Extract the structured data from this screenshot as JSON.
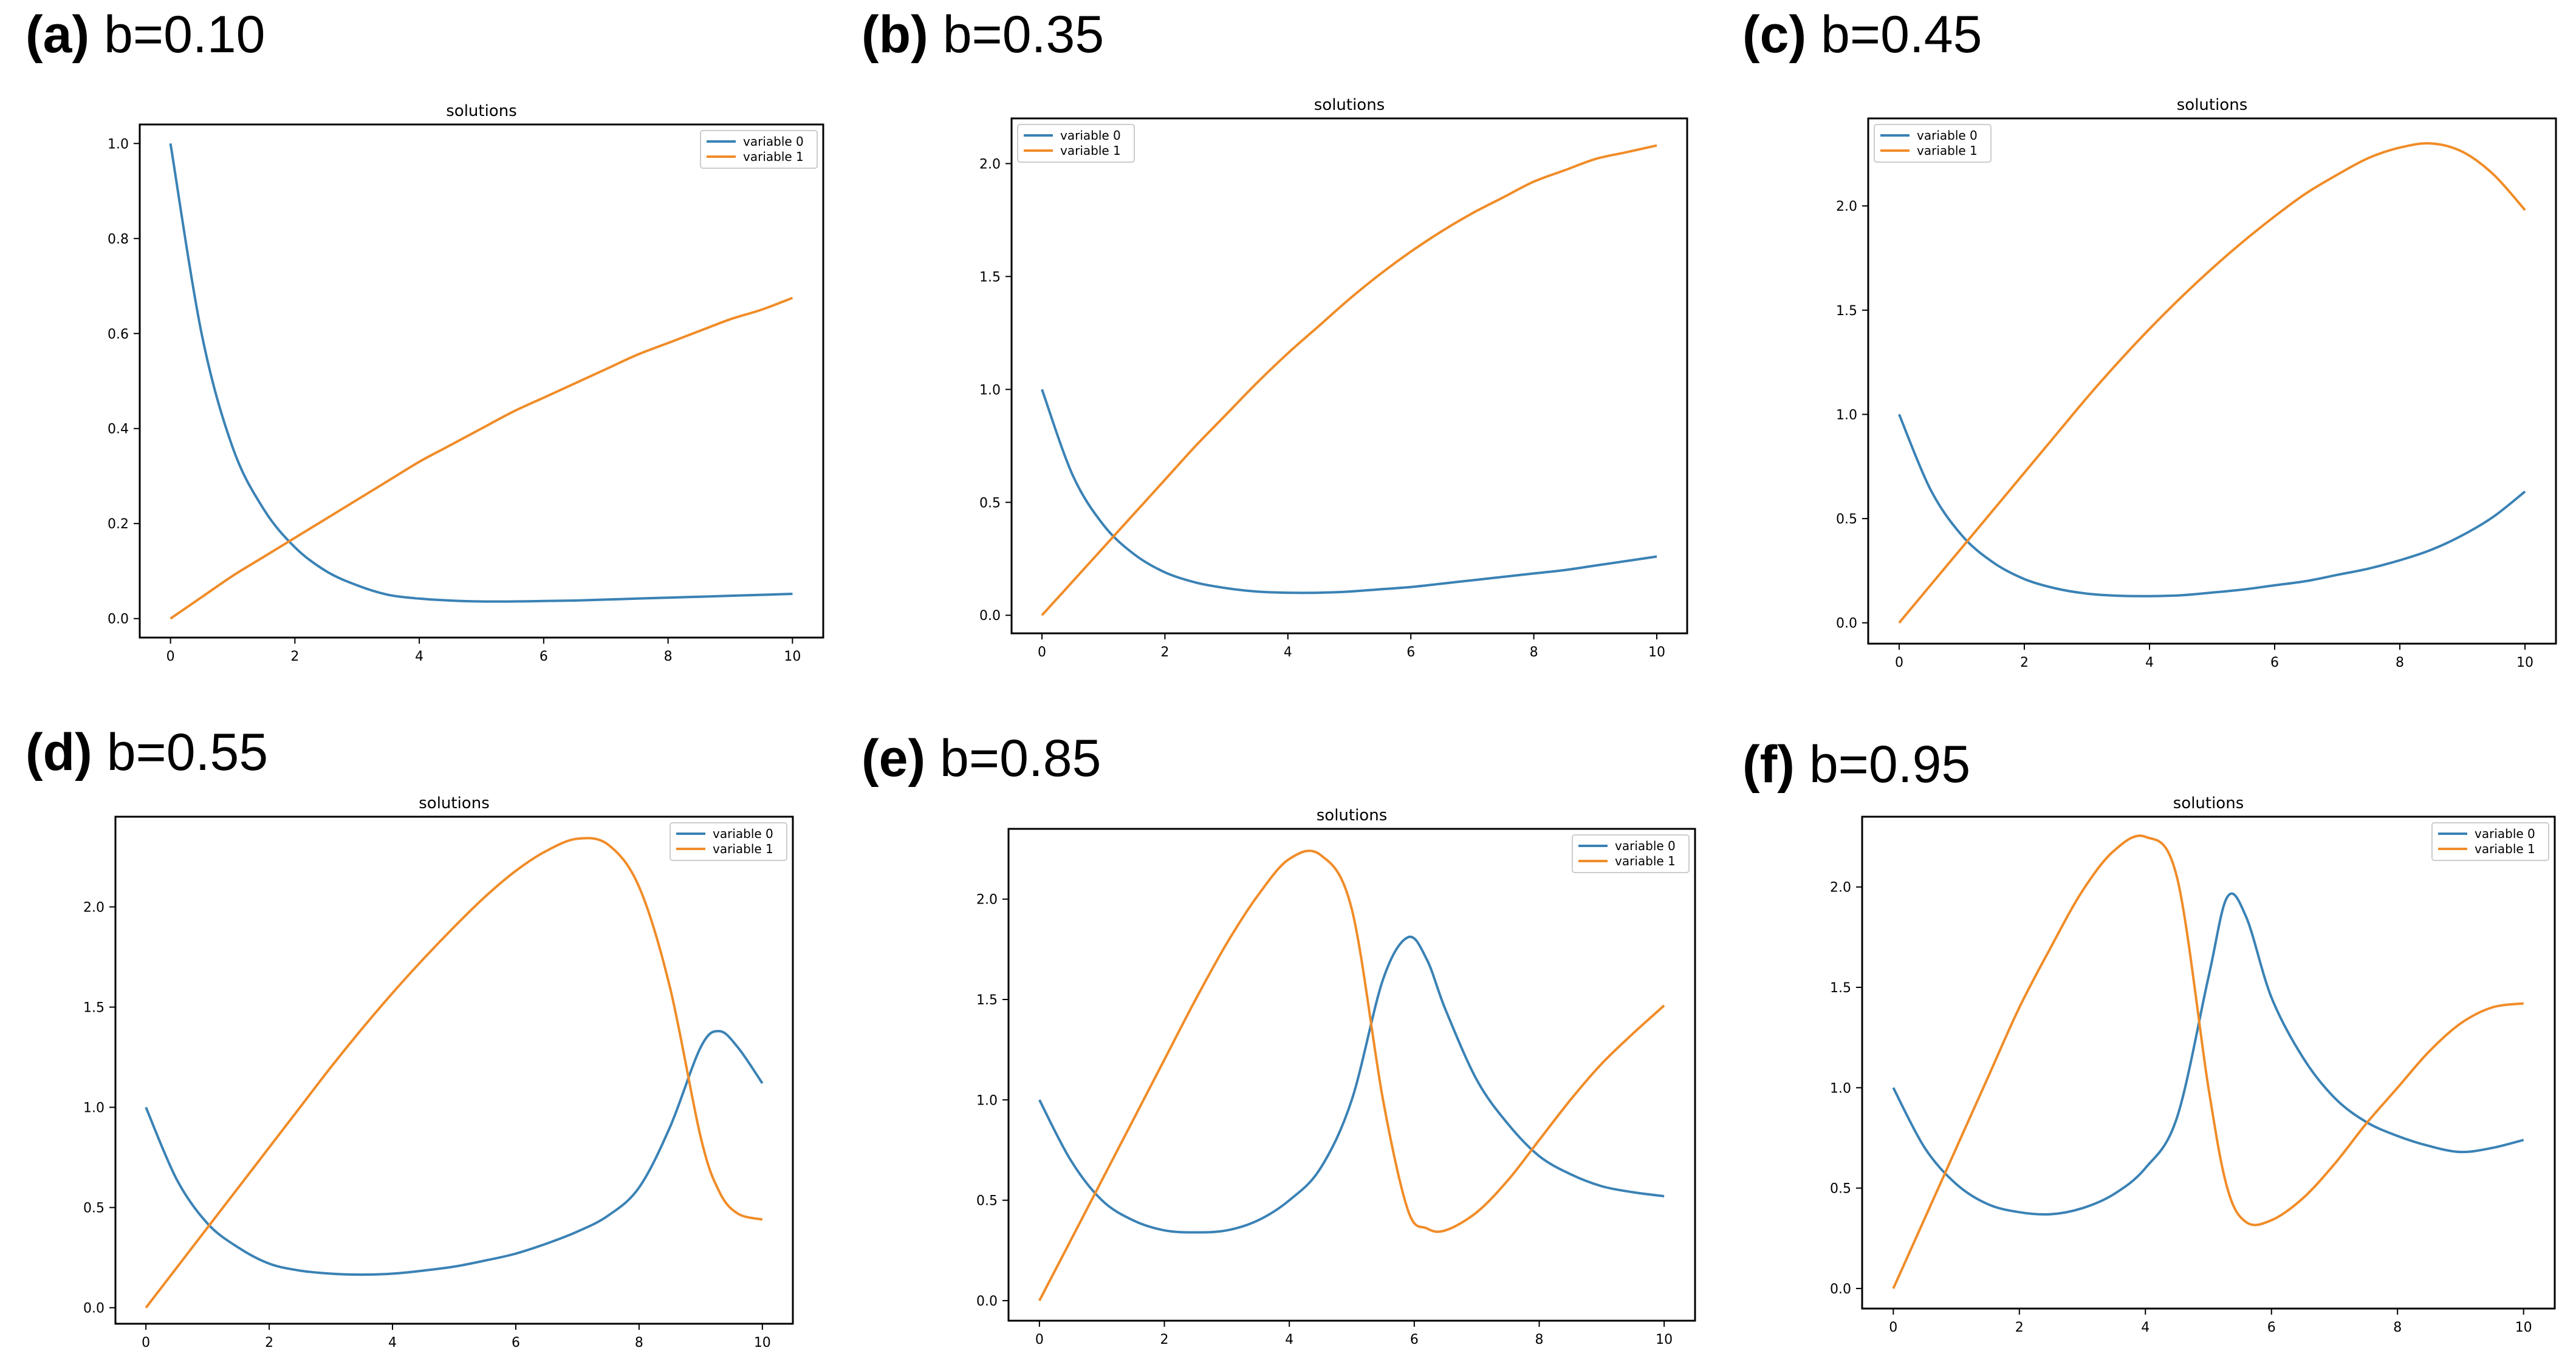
{
  "colors": {
    "variable_0": "#3a82b5",
    "variable_1": "#f08c28"
  },
  "chart_data": [
    {
      "type": "line",
      "panel_letter": "(a)",
      "panel_param": "b=0.10",
      "title": "solutions",
      "xlabel": "",
      "ylabel": "",
      "xlim": [
        0,
        10
      ],
      "ylim": [
        -0.04,
        1.04
      ],
      "xticks": [
        0,
        2,
        4,
        6,
        8,
        10
      ],
      "yticks": [
        0.0,
        0.2,
        0.4,
        0.6,
        0.8,
        1.0
      ],
      "ytick_labels": [
        "0.0",
        "0.2",
        "0.4",
        "0.6",
        "0.8",
        "1.0"
      ],
      "legend": "top-right",
      "x": [
        0,
        0.5,
        1,
        1.5,
        2,
        2.5,
        3,
        3.5,
        4,
        4.5,
        5,
        5.5,
        6,
        6.5,
        7,
        7.5,
        8,
        8.5,
        9,
        9.5,
        10
      ],
      "series": [
        {
          "name": "variable 0",
          "values": [
            1.0,
            0.6,
            0.36,
            0.23,
            0.15,
            0.1,
            0.07,
            0.05,
            0.042,
            0.038,
            0.036,
            0.036,
            0.037,
            0.038,
            0.04,
            0.042,
            0.044,
            0.046,
            0.048,
            0.05,
            0.052
          ]
        },
        {
          "name": "variable 1",
          "values": [
            0.0,
            0.045,
            0.09,
            0.13,
            0.17,
            0.21,
            0.25,
            0.29,
            0.33,
            0.365,
            0.4,
            0.435,
            0.465,
            0.495,
            0.525,
            0.555,
            0.58,
            0.605,
            0.63,
            0.65,
            0.675
          ]
        }
      ]
    },
    {
      "type": "line",
      "panel_letter": "(b)",
      "panel_param": "b=0.35",
      "title": "solutions",
      "xlabel": "",
      "ylabel": "",
      "xlim": [
        0,
        10
      ],
      "ylim": [
        -0.08,
        2.2
      ],
      "xticks": [
        0,
        2,
        4,
        6,
        8,
        10
      ],
      "yticks": [
        0.0,
        0.5,
        1.0,
        1.5,
        2.0
      ],
      "ytick_labels": [
        "0.0",
        "0.5",
        "1.0",
        "1.5",
        "2.0"
      ],
      "legend": "top-left",
      "x": [
        0,
        0.5,
        1,
        1.5,
        2,
        2.5,
        3,
        3.5,
        4,
        4.5,
        5,
        5.5,
        6,
        6.5,
        7,
        7.5,
        8,
        8.5,
        9,
        9.5,
        10
      ],
      "series": [
        {
          "name": "variable 0",
          "values": [
            1.0,
            0.62,
            0.4,
            0.27,
            0.19,
            0.145,
            0.12,
            0.105,
            0.1,
            0.1,
            0.105,
            0.115,
            0.125,
            0.14,
            0.155,
            0.17,
            0.185,
            0.2,
            0.22,
            0.24,
            0.26
          ]
        },
        {
          "name": "variable 1",
          "values": [
            0.0,
            0.15,
            0.3,
            0.45,
            0.6,
            0.75,
            0.89,
            1.03,
            1.16,
            1.28,
            1.4,
            1.51,
            1.61,
            1.7,
            1.78,
            1.85,
            1.92,
            1.97,
            2.02,
            2.05,
            2.08
          ]
        }
      ]
    },
    {
      "type": "line",
      "panel_letter": "(c)",
      "panel_param": "b=0.45",
      "title": "solutions",
      "xlabel": "",
      "ylabel": "",
      "xlim": [
        0,
        10
      ],
      "ylim": [
        -0.1,
        2.42
      ],
      "xticks": [
        0,
        2,
        4,
        6,
        8,
        10
      ],
      "yticks": [
        0.0,
        0.5,
        1.0,
        1.5,
        2.0
      ],
      "ytick_labels": [
        "0.0",
        "0.5",
        "1.0",
        "1.5",
        "2.0"
      ],
      "legend": "top-left",
      "x": [
        0,
        0.5,
        1,
        1.5,
        2,
        2.5,
        3,
        3.5,
        4,
        4.5,
        5,
        5.5,
        6,
        6.5,
        7,
        7.5,
        8,
        8.5,
        9,
        9.5,
        10
      ],
      "series": [
        {
          "name": "variable 0",
          "values": [
            1.0,
            0.64,
            0.42,
            0.29,
            0.21,
            0.165,
            0.14,
            0.13,
            0.128,
            0.132,
            0.145,
            0.16,
            0.18,
            0.2,
            0.23,
            0.26,
            0.3,
            0.35,
            0.42,
            0.51,
            0.63
          ]
        },
        {
          "name": "variable 1",
          "values": [
            0.0,
            0.18,
            0.36,
            0.54,
            0.72,
            0.9,
            1.08,
            1.25,
            1.41,
            1.56,
            1.7,
            1.83,
            1.95,
            2.06,
            2.15,
            2.23,
            2.28,
            2.3,
            2.26,
            2.15,
            1.98
          ]
        }
      ]
    },
    {
      "type": "line",
      "panel_letter": "(d)",
      "panel_param": "b=0.55",
      "title": "solutions",
      "xlabel": "",
      "ylabel": "",
      "xlim": [
        0,
        10
      ],
      "ylim": [
        -0.08,
        2.45
      ],
      "xticks": [
        0,
        2,
        4,
        6,
        8,
        10
      ],
      "yticks": [
        0.0,
        0.5,
        1.0,
        1.5,
        2.0
      ],
      "ytick_labels": [
        "0.0",
        "0.5",
        "1.0",
        "1.5",
        "2.0"
      ],
      "legend": "top-right",
      "x": [
        0,
        0.5,
        1,
        1.5,
        2,
        2.5,
        3,
        3.5,
        4,
        4.5,
        5,
        5.5,
        6,
        6.5,
        7,
        7.5,
        8,
        8.5,
        9,
        9.3,
        9.6,
        10
      ],
      "series": [
        {
          "name": "variable 0",
          "values": [
            1.0,
            0.64,
            0.42,
            0.3,
            0.22,
            0.185,
            0.17,
            0.165,
            0.17,
            0.185,
            0.205,
            0.235,
            0.27,
            0.32,
            0.38,
            0.46,
            0.6,
            0.9,
            1.3,
            1.38,
            1.3,
            1.12
          ]
        },
        {
          "name": "variable 1",
          "values": [
            0.0,
            0.2,
            0.4,
            0.6,
            0.8,
            1.0,
            1.2,
            1.39,
            1.57,
            1.74,
            1.9,
            2.05,
            2.18,
            2.28,
            2.34,
            2.31,
            2.1,
            1.6,
            0.85,
            0.58,
            0.47,
            0.44
          ]
        }
      ]
    },
    {
      "type": "line",
      "panel_letter": "(e)",
      "panel_param": "b=0.85",
      "title": "solutions",
      "xlabel": "",
      "ylabel": "",
      "xlim": [
        0,
        10
      ],
      "ylim": [
        -0.1,
        2.35
      ],
      "xticks": [
        0,
        2,
        4,
        6,
        8,
        10
      ],
      "yticks": [
        0.0,
        0.5,
        1.0,
        1.5,
        2.0
      ],
      "ytick_labels": [
        "0.0",
        "0.5",
        "1.0",
        "1.5",
        "2.0"
      ],
      "legend": "top-right",
      "x": [
        0,
        0.5,
        1,
        1.5,
        2,
        2.5,
        3,
        3.5,
        4,
        4.5,
        5,
        5.5,
        5.9,
        6.2,
        6.5,
        7,
        7.5,
        8,
        8.5,
        9,
        9.5,
        10
      ],
      "series": [
        {
          "name": "variable 0",
          "values": [
            1.0,
            0.7,
            0.5,
            0.4,
            0.35,
            0.34,
            0.35,
            0.4,
            0.5,
            0.66,
            1.0,
            1.6,
            1.81,
            1.7,
            1.45,
            1.1,
            0.88,
            0.72,
            0.63,
            0.57,
            0.54,
            0.52
          ]
        },
        {
          "name": "variable 1",
          "values": [
            0.0,
            0.3,
            0.6,
            0.9,
            1.2,
            1.5,
            1.78,
            2.02,
            2.2,
            2.22,
            1.95,
            1.0,
            0.45,
            0.36,
            0.35,
            0.44,
            0.6,
            0.8,
            1.0,
            1.18,
            1.33,
            1.47
          ]
        }
      ]
    },
    {
      "type": "line",
      "panel_letter": "(f)",
      "panel_param": "b=0.95",
      "title": "solutions",
      "xlabel": "",
      "ylabel": "",
      "xlim": [
        0,
        10
      ],
      "ylim": [
        -0.1,
        2.35
      ],
      "xticks": [
        0,
        2,
        4,
        6,
        8,
        10
      ],
      "yticks": [
        0.0,
        0.5,
        1.0,
        1.5,
        2.0
      ],
      "ytick_labels": [
        "0.0",
        "0.5",
        "1.0",
        "1.5",
        "2.0"
      ],
      "legend": "top-right",
      "x": [
        0,
        0.5,
        1,
        1.5,
        2,
        2.5,
        3,
        3.5,
        4,
        4.5,
        5,
        5.3,
        5.6,
        6,
        6.5,
        7,
        7.5,
        8,
        8.5,
        9,
        9.5,
        10
      ],
      "series": [
        {
          "name": "variable 0",
          "values": [
            1.0,
            0.7,
            0.52,
            0.42,
            0.38,
            0.37,
            0.4,
            0.47,
            0.6,
            0.85,
            1.55,
            1.95,
            1.85,
            1.45,
            1.15,
            0.95,
            0.83,
            0.76,
            0.71,
            0.68,
            0.7,
            0.74
          ]
        },
        {
          "name": "variable 1",
          "values": [
            0.0,
            0.35,
            0.7,
            1.05,
            1.4,
            1.7,
            1.98,
            2.18,
            2.25,
            2.05,
            1.0,
            0.5,
            0.33,
            0.34,
            0.45,
            0.62,
            0.82,
            1.0,
            1.18,
            1.32,
            1.4,
            1.42
          ]
        }
      ]
    }
  ]
}
